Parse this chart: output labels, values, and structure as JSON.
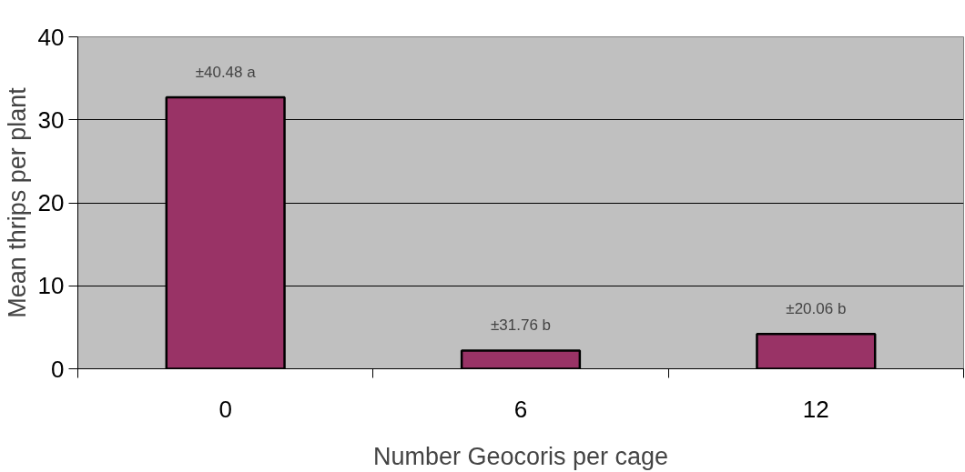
{
  "chart_data": {
    "type": "bar",
    "xlabel": "Number Geocoris per cage",
    "ylabel": "Mean thrips per plant",
    "categories": [
      "0",
      "6",
      "12"
    ],
    "values": [
      32.7,
      2.2,
      4.2
    ],
    "color": "#993366",
    "ylim": [
      0,
      40
    ],
    "yticks": [
      0,
      10,
      20,
      30,
      40
    ],
    "grid": "y",
    "annotations": [
      {
        "text": "±40.48 a",
        "x": "0",
        "y": 32.7
      },
      {
        "text": "±31.76 b",
        "x": "6",
        "y": 2.2
      },
      {
        "text": "±20.06 b",
        "x": "12",
        "y": 4.2
      }
    ]
  }
}
